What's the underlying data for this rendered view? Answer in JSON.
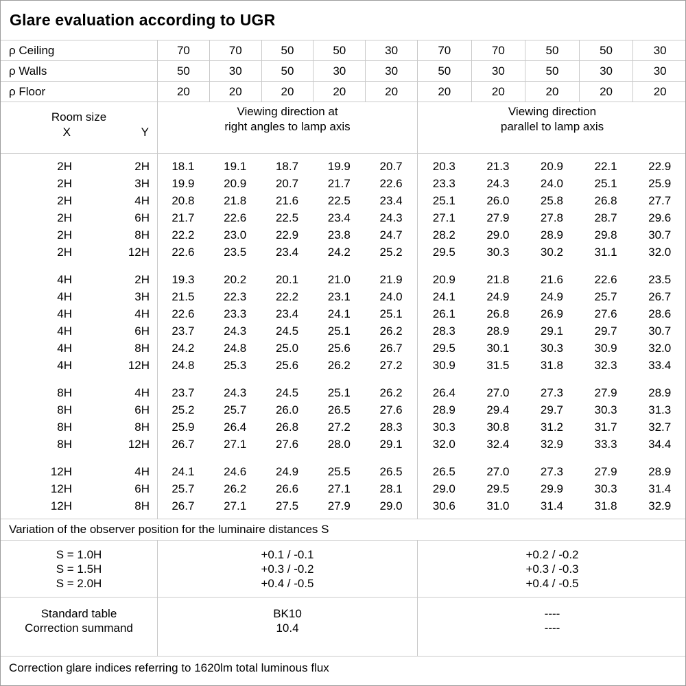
{
  "title": "Glare evaluation according to UGR",
  "reflectance_rows": [
    {
      "label": "ρ Ceiling",
      "values": [
        "70",
        "70",
        "50",
        "50",
        "30",
        "70",
        "70",
        "50",
        "50",
        "30"
      ]
    },
    {
      "label": "ρ Walls",
      "values": [
        "50",
        "30",
        "50",
        "30",
        "30",
        "50",
        "30",
        "50",
        "30",
        "30"
      ]
    },
    {
      "label": "ρ Floor",
      "values": [
        "20",
        "20",
        "20",
        "20",
        "20",
        "20",
        "20",
        "20",
        "20",
        "20"
      ]
    }
  ],
  "table_header": {
    "room_size_label": "Room size",
    "x_label": "X",
    "y_label": "Y",
    "right_angles_label": "Viewing direction at\nright angles to lamp axis",
    "parallel_label": "Viewing direction\nparallel to lamp axis"
  },
  "room_blocks": [
    {
      "rows": [
        {
          "x": "2H",
          "y": "2H",
          "right_angles": [
            "18.1",
            "19.1",
            "18.7",
            "19.9",
            "20.7"
          ],
          "parallel": [
            "20.3",
            "21.3",
            "20.9",
            "22.1",
            "22.9"
          ]
        },
        {
          "x": "2H",
          "y": "3H",
          "right_angles": [
            "19.9",
            "20.9",
            "20.7",
            "21.7",
            "22.6"
          ],
          "parallel": [
            "23.3",
            "24.3",
            "24.0",
            "25.1",
            "25.9"
          ]
        },
        {
          "x": "2H",
          "y": "4H",
          "right_angles": [
            "20.8",
            "21.8",
            "21.6",
            "22.5",
            "23.4"
          ],
          "parallel": [
            "25.1",
            "26.0",
            "25.8",
            "26.8",
            "27.7"
          ]
        },
        {
          "x": "2H",
          "y": "6H",
          "right_angles": [
            "21.7",
            "22.6",
            "22.5",
            "23.4",
            "24.3"
          ],
          "parallel": [
            "27.1",
            "27.9",
            "27.8",
            "28.7",
            "29.6"
          ]
        },
        {
          "x": "2H",
          "y": "8H",
          "right_angles": [
            "22.2",
            "23.0",
            "22.9",
            "23.8",
            "24.7"
          ],
          "parallel": [
            "28.2",
            "29.0",
            "28.9",
            "29.8",
            "30.7"
          ]
        },
        {
          "x": "2H",
          "y": "12H",
          "right_angles": [
            "22.6",
            "23.5",
            "23.4",
            "24.2",
            "25.2"
          ],
          "parallel": [
            "29.5",
            "30.3",
            "30.2",
            "31.1",
            "32.0"
          ]
        }
      ]
    },
    {
      "rows": [
        {
          "x": "4H",
          "y": "2H",
          "right_angles": [
            "19.3",
            "20.2",
            "20.1",
            "21.0",
            "21.9"
          ],
          "parallel": [
            "20.9",
            "21.8",
            "21.6",
            "22.6",
            "23.5"
          ]
        },
        {
          "x": "4H",
          "y": "3H",
          "right_angles": [
            "21.5",
            "22.3",
            "22.2",
            "23.1",
            "24.0"
          ],
          "parallel": [
            "24.1",
            "24.9",
            "24.9",
            "25.7",
            "26.7"
          ]
        },
        {
          "x": "4H",
          "y": "4H",
          "right_angles": [
            "22.6",
            "23.3",
            "23.4",
            "24.1",
            "25.1"
          ],
          "parallel": [
            "26.1",
            "26.8",
            "26.9",
            "27.6",
            "28.6"
          ]
        },
        {
          "x": "4H",
          "y": "6H",
          "right_angles": [
            "23.7",
            "24.3",
            "24.5",
            "25.1",
            "26.2"
          ],
          "parallel": [
            "28.3",
            "28.9",
            "29.1",
            "29.7",
            "30.7"
          ]
        },
        {
          "x": "4H",
          "y": "8H",
          "right_angles": [
            "24.2",
            "24.8",
            "25.0",
            "25.6",
            "26.7"
          ],
          "parallel": [
            "29.5",
            "30.1",
            "30.3",
            "30.9",
            "32.0"
          ]
        },
        {
          "x": "4H",
          "y": "12H",
          "right_angles": [
            "24.8",
            "25.3",
            "25.6",
            "26.2",
            "27.2"
          ],
          "parallel": [
            "30.9",
            "31.5",
            "31.8",
            "32.3",
            "33.4"
          ]
        }
      ]
    },
    {
      "rows": [
        {
          "x": "8H",
          "y": "4H",
          "right_angles": [
            "23.7",
            "24.3",
            "24.5",
            "25.1",
            "26.2"
          ],
          "parallel": [
            "26.4",
            "27.0",
            "27.3",
            "27.9",
            "28.9"
          ]
        },
        {
          "x": "8H",
          "y": "6H",
          "right_angles": [
            "25.2",
            "25.7",
            "26.0",
            "26.5",
            "27.6"
          ],
          "parallel": [
            "28.9",
            "29.4",
            "29.7",
            "30.3",
            "31.3"
          ]
        },
        {
          "x": "8H",
          "y": "8H",
          "right_angles": [
            "25.9",
            "26.4",
            "26.8",
            "27.2",
            "28.3"
          ],
          "parallel": [
            "30.3",
            "30.8",
            "31.2",
            "31.7",
            "32.7"
          ]
        },
        {
          "x": "8H",
          "y": "12H",
          "right_angles": [
            "26.7",
            "27.1",
            "27.6",
            "28.0",
            "29.1"
          ],
          "parallel": [
            "32.0",
            "32.4",
            "32.9",
            "33.3",
            "34.4"
          ]
        }
      ]
    },
    {
      "rows": [
        {
          "x": "12H",
          "y": "4H",
          "right_angles": [
            "24.1",
            "24.6",
            "24.9",
            "25.5",
            "26.5"
          ],
          "parallel": [
            "26.5",
            "27.0",
            "27.3",
            "27.9",
            "28.9"
          ]
        },
        {
          "x": "12H",
          "y": "6H",
          "right_angles": [
            "25.7",
            "26.2",
            "26.6",
            "27.1",
            "28.1"
          ],
          "parallel": [
            "29.0",
            "29.5",
            "29.9",
            "30.3",
            "31.4"
          ]
        },
        {
          "x": "12H",
          "y": "8H",
          "right_angles": [
            "26.7",
            "27.1",
            "27.5",
            "27.9",
            "29.0"
          ],
          "parallel": [
            "30.6",
            "31.0",
            "31.4",
            "31.8",
            "32.9"
          ]
        }
      ]
    }
  ],
  "variation_title": "Variation of the observer position for the luminaire distances S",
  "variation_rows": [
    {
      "label": "S = 1.0H",
      "right_angles": "+0.1 / -0.1",
      "parallel": "+0.2 / -0.2"
    },
    {
      "label": "S = 1.5H",
      "right_angles": "+0.3 / -0.2",
      "parallel": "+0.3 / -0.3"
    },
    {
      "label": "S = 2.0H",
      "right_angles": "+0.4 / -0.5",
      "parallel": "+0.4 / -0.5"
    }
  ],
  "summary_rows": [
    {
      "label": "Standard table",
      "right_angles": "BK10",
      "parallel": "----"
    },
    {
      "label": "Correction summand",
      "right_angles": "10.4",
      "parallel": "----"
    }
  ],
  "footer_note": "Correction glare indices referring to 1620lm total luminous flux",
  "colors": {
    "grid": "#c9c9c9",
    "outer_border": "#9b9b9b",
    "text": "#000000",
    "background": "#ffffff"
  }
}
